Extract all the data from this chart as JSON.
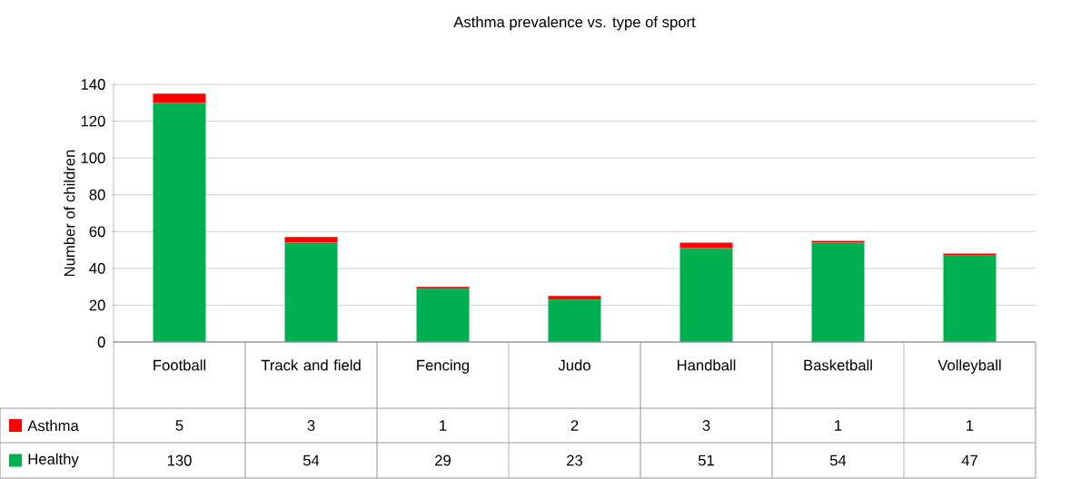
{
  "chart_data": {
    "type": "bar",
    "title": "Asthma prevalence vs. type of sport",
    "ylabel": "Number of children",
    "categories": [
      "Football",
      "Track and field",
      "Fencing",
      "Judo",
      "Handball",
      "Basketball",
      "Volleyball"
    ],
    "series": [
      {
        "name": "Healthy",
        "color": "#00b050",
        "values": [
          130,
          54,
          29,
          23,
          51,
          54,
          47
        ]
      },
      {
        "name": "Asthma",
        "color": "#ff0000",
        "values": [
          5,
          3,
          1,
          2,
          3,
          1,
          1
        ]
      }
    ],
    "stacked": true,
    "ylim": [
      0,
      140
    ],
    "yticks": [
      0,
      20,
      40,
      60,
      80,
      100,
      120,
      140
    ],
    "grid": "y",
    "legend": "bottom left",
    "data_labels": true
  }
}
